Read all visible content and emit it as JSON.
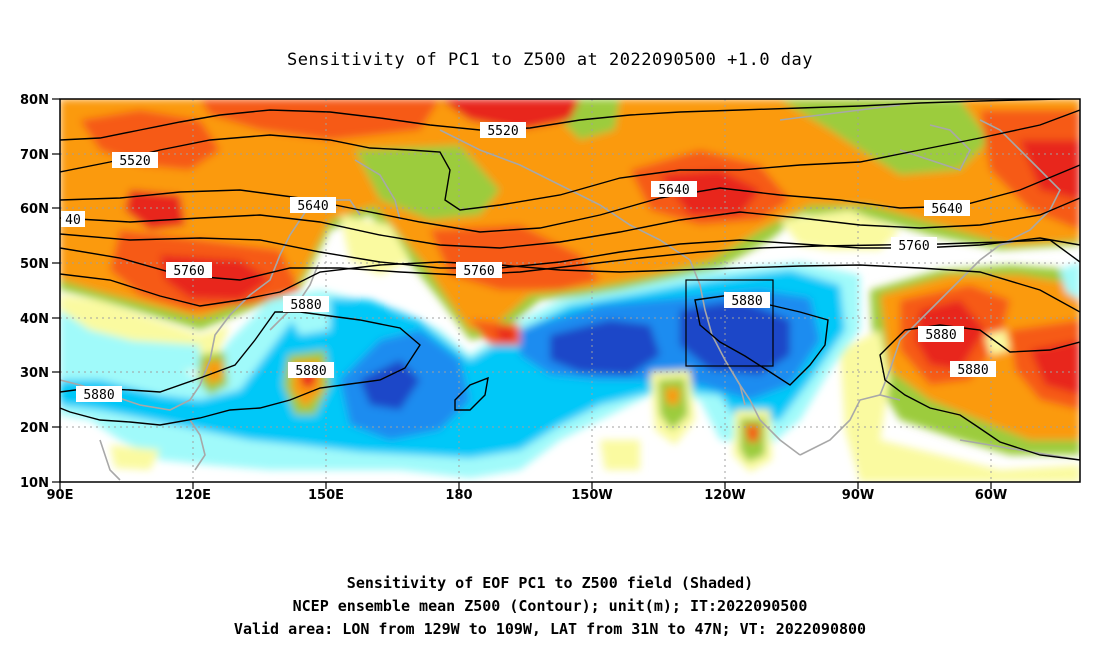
{
  "figure": {
    "title": "Sensitivity of PC1 to Z500 at 2022090500 +1.0 day",
    "caption_lines": [
      "Sensitivity of EOF PC1 to Z500 field (Shaded)",
      "NCEP ensemble mean Z500 (Contour); unit(m); IT:2022090500",
      "Valid area: LON from 129W to 109W, LAT from 31N to 47N; VT: 2022090800"
    ]
  },
  "map": {
    "lon_range": [
      "90E",
      "55W"
    ],
    "lat_range": [
      "10N",
      "80N"
    ],
    "lat_ticks": [
      "80N",
      "70N",
      "60N",
      "50N",
      "40N",
      "30N",
      "20N",
      "10N"
    ],
    "lon_ticks": [
      "90E",
      "120E",
      "150E",
      "180",
      "150W",
      "120W",
      "90W",
      "60W"
    ],
    "contour_labels": [
      "5520",
      "5520",
      "5640",
      "5640",
      "5640",
      "40",
      "5760",
      "5760",
      "5760",
      "5880",
      "5880",
      "5880",
      "5880",
      "5880",
      "5880"
    ],
    "valid_area": {
      "lon": [
        "129W",
        "109W"
      ],
      "lat": [
        "31N",
        "47N"
      ]
    },
    "colors": {
      "dark_red": "#e8281e",
      "red_orange": "#f65a18",
      "orange": "#fb9a08",
      "light_orange": "#fcbe4a",
      "green": "#9ccc3c",
      "pale_yellow": "#fafaa0",
      "light_cyan": "#a0fafa",
      "sky_blue": "#00c8f8",
      "blue": "#1e8cf0",
      "dark_blue": "#1e46c8",
      "coast_gray": "#a8a8a8",
      "grid_gray": "#a0a0a0"
    }
  }
}
